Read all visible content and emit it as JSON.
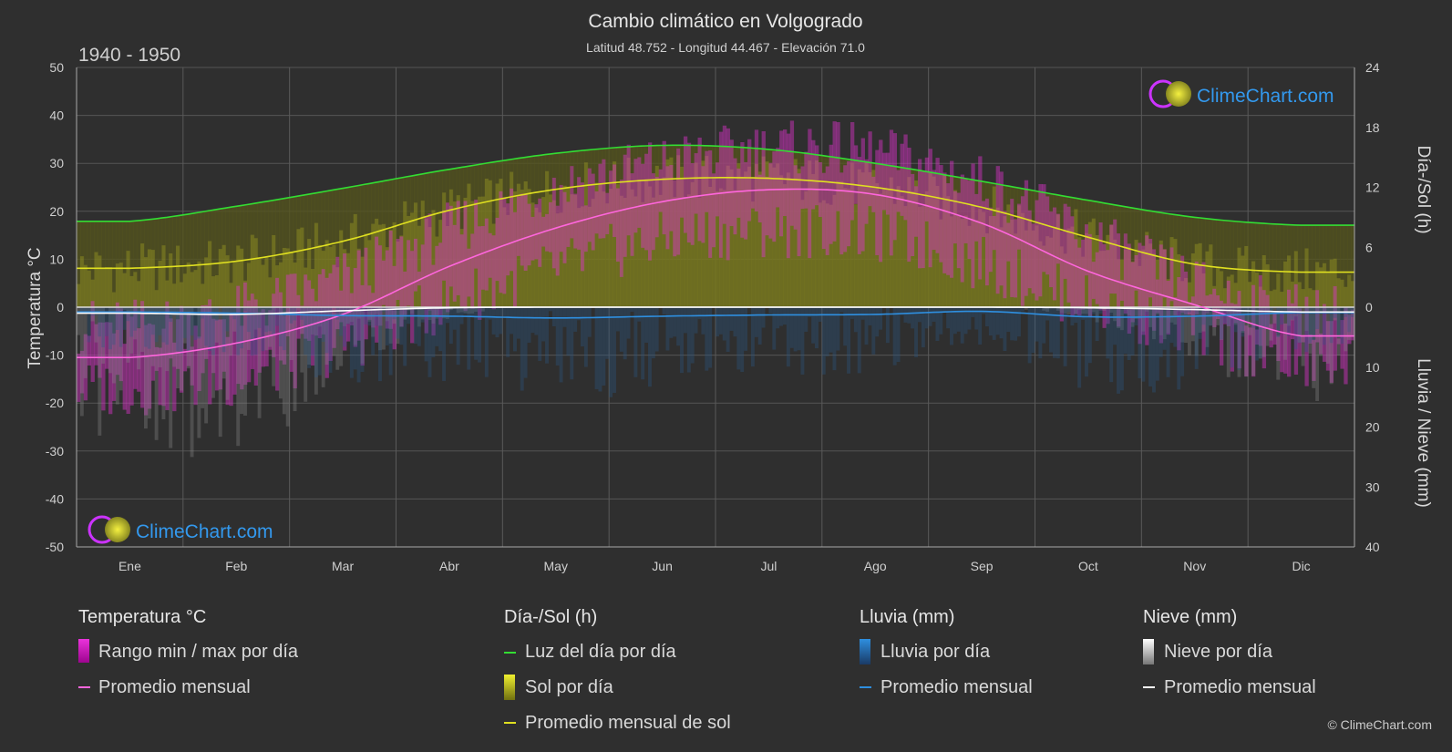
{
  "title": "Cambio climático en Volgogrado",
  "subtitle": "Latitud 48.752 - Longitud 44.467 - Elevación 71.0",
  "period": "1940 - 1950",
  "watermark": "ClimeChart.com",
  "copyright": "© ClimeChart.com",
  "chart_data": {
    "type": "area",
    "months": [
      "Ene",
      "Feb",
      "Mar",
      "Abr",
      "May",
      "Jun",
      "Jul",
      "Ago",
      "Sep",
      "Oct",
      "Nov",
      "Dic"
    ],
    "left_axis": {
      "label": "Temperatura °C",
      "ylim": [
        -50,
        50
      ],
      "ticks": [
        "50",
        "40",
        "30",
        "20",
        "10",
        "0",
        "-10",
        "-20",
        "-30",
        "-40",
        "-50"
      ]
    },
    "right_axis_top": {
      "label": "Día-/Sol (h)",
      "ylim": [
        0,
        24
      ],
      "ticks": [
        "24",
        "18",
        "12",
        "6",
        "0"
      ]
    },
    "right_axis_bottom": {
      "label": "Lluvia / Nieve (mm)",
      "ylim": [
        0,
        40
      ],
      "ticks": [
        "10",
        "20",
        "30",
        "40"
      ]
    },
    "grid": true,
    "series": [
      {
        "name": "Luz del día por día",
        "unit": "h",
        "color": "#33dd33",
        "values": [
          8.6,
          10.1,
          11.9,
          13.8,
          15.4,
          16.2,
          15.8,
          14.4,
          12.6,
          10.7,
          9.0,
          8.2
        ]
      },
      {
        "name": "Promedio mensual de sol",
        "unit": "h",
        "color": "#e0e020",
        "values": [
          3.9,
          4.6,
          6.6,
          9.7,
          11.8,
          12.8,
          12.9,
          12.0,
          10.0,
          7.0,
          4.3,
          3.5
        ]
      },
      {
        "name": "Promedio mensual",
        "group": "Temperatura °C",
        "unit": "°C",
        "color": "#ff66dd",
        "values": [
          -10.5,
          -7.5,
          -1.5,
          8.5,
          16.5,
          22.0,
          24.5,
          23.5,
          17.5,
          7.5,
          0.5,
          -6.0
        ]
      },
      {
        "name": "Promedio mensual",
        "group": "Lluvia (mm)",
        "unit": "mm",
        "color": "#2e8fe0",
        "values": [
          0.8,
          1.0,
          1.4,
          1.5,
          1.8,
          1.5,
          1.3,
          1.2,
          0.7,
          1.6,
          1.5,
          0.9
        ]
      },
      {
        "name": "Promedio mensual",
        "group": "Nieve (mm)",
        "unit": "mm",
        "color": "#ffffff",
        "values": [
          1.0,
          1.2,
          0.6,
          0.1,
          0,
          0,
          0,
          0,
          0,
          0.1,
          0.4,
          0.8
        ]
      }
    ],
    "daily_temp_range": {
      "name": "Rango min / max por día",
      "max": [
        -4,
        -1,
        6,
        16,
        25,
        30,
        33,
        32,
        26,
        15,
        5,
        -1
      ],
      "min": [
        -17,
        -15,
        -8,
        1,
        8,
        14,
        16,
        15,
        9,
        1,
        -5,
        -12
      ]
    }
  },
  "legend": {
    "temp": {
      "title": "Temperatura °C",
      "items": [
        "Rango min / max por día",
        "Promedio mensual"
      ]
    },
    "sun": {
      "title": "Día-/Sol (h)",
      "items": [
        "Luz del día por día",
        "Sol por día",
        "Promedio mensual de sol"
      ]
    },
    "rain": {
      "title": "Lluvia (mm)",
      "items": [
        "Lluvia por día",
        "Promedio mensual"
      ]
    },
    "snow": {
      "title": "Nieve (mm)",
      "items": [
        "Nieve por día",
        "Promedio mensual"
      ]
    }
  },
  "colors": {
    "background": "#2f2f2f",
    "grid": "#5a5a5a",
    "daylight": "#33dd33",
    "sun": "#e0e020",
    "temp": "#ff66dd",
    "rain": "#2e8fe0",
    "snow": "#ffffff"
  }
}
